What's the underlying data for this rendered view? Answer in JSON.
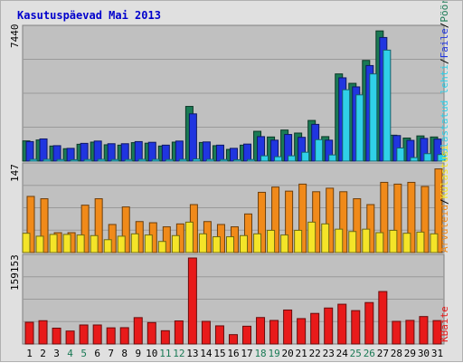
{
  "colors": {
    "pages": "#1a7a55",
    "files": "#2035e0",
    "hits": "#30d0e8",
    "visits": "#f08a1a",
    "visitors": "#f4e428",
    "bandwidth": "#e81a1a",
    "weekday_text": "#000000",
    "weekend_text": "#1a7a55",
    "panel_bg": "#c0c0c0",
    "title": "#0000cc"
  },
  "chart_data": {
    "type": "bar",
    "title": "Kasutuspäevad Mai 2013",
    "categories": [
      "1",
      "2",
      "3",
      "4",
      "5",
      "6",
      "7",
      "8",
      "9",
      "10",
      "11",
      "12",
      "13",
      "14",
      "15",
      "16",
      "17",
      "18",
      "19",
      "20",
      "21",
      "22",
      "23",
      "24",
      "25",
      "26",
      "27",
      "28",
      "29",
      "30",
      "31"
    ],
    "weekend_days": [
      "4",
      "5",
      "11",
      "12",
      "18",
      "19",
      "25",
      "26"
    ],
    "panels": [
      {
        "max_label": "7440",
        "ylim": [
          0,
          7440
        ],
        "legend": [
          "Pöördumisi",
          "Faile",
          "Külastatud lehti"
        ],
        "series": [
          {
            "name": "Pöördumisi",
            "color_key": "pages",
            "values": [
              1140,
              1190,
              850,
              700,
              950,
              1070,
              920,
              900,
              1040,
              1010,
              850,
              1070,
              3080,
              1050,
              870,
              660,
              900,
              1680,
              1360,
              1750,
              1580,
              2290,
              1380,
              4910,
              4380,
              5670,
              7330,
              1460,
              1300,
              1420,
              1360
            ]
          },
          {
            "name": "Faile",
            "color_key": "files",
            "values": [
              1100,
              1250,
              870,
              720,
              1000,
              1130,
              980,
              980,
              1100,
              1060,
              900,
              1130,
              2660,
              1080,
              900,
              720,
              960,
              1380,
              1180,
              1500,
              1340,
              2070,
              1180,
              4690,
              4180,
              5380,
              6960,
              1440,
              1170,
              1280,
              1240
            ]
          },
          {
            "name": "Külastatud lehti",
            "color_key": "hits",
            "values": [
              100,
              100,
              90,
              80,
              90,
              100,
              90,
              90,
              100,
              100,
              90,
              100,
              120,
              100,
              90,
              80,
              90,
              300,
              250,
              300,
              500,
              1210,
              350,
              4020,
              3730,
              4910,
              6250,
              740,
              200,
              420,
              370
            ]
          }
        ]
      },
      {
        "max_label": "147",
        "ylim": [
          0,
          147
        ],
        "legend": [
          "Külastusi",
          "Arvuteid"
        ],
        "series": [
          {
            "name": "Külastusi",
            "color_key": "visits",
            "values": [
              96,
              92,
              34,
              34,
              81,
              92,
              48,
              78,
              53,
              51,
              44,
              49,
              82,
              53,
              48,
              44,
              66,
              103,
              112,
              105,
              117,
              104,
              110,
              104,
              92,
              82,
              120,
              117,
              120,
              113,
              143
            ]
          },
          {
            "name": "Arvuteid",
            "color_key": "visitors",
            "values": [
              33,
              28,
              31,
              31,
              30,
              29,
              22,
              28,
              32,
              30,
              19,
              29,
              52,
              32,
              27,
              27,
              29,
              32,
              38,
              30,
              38,
              52,
              49,
              40,
              36,
              40,
              34,
              38,
              33,
              35,
              32
            ]
          }
        ]
      },
      {
        "max_label": "159153",
        "ylim": [
          0,
          159153
        ],
        "legend": [
          "KBaite"
        ],
        "series": [
          {
            "name": "KBaite",
            "color_key": "bandwidth",
            "values": [
              40240,
              43100,
              29300,
              24000,
              35200,
              35200,
              29900,
              30200,
              48800,
              39700,
              24600,
              42700,
              159153,
              41900,
              33600,
              17300,
              32900,
              49000,
              43600,
              62900,
              47000,
              56600,
              66600,
              73600,
              61800,
              76700,
              97100,
              41900,
              43700,
              50800,
              43300
            ]
          }
        ]
      }
    ]
  }
}
